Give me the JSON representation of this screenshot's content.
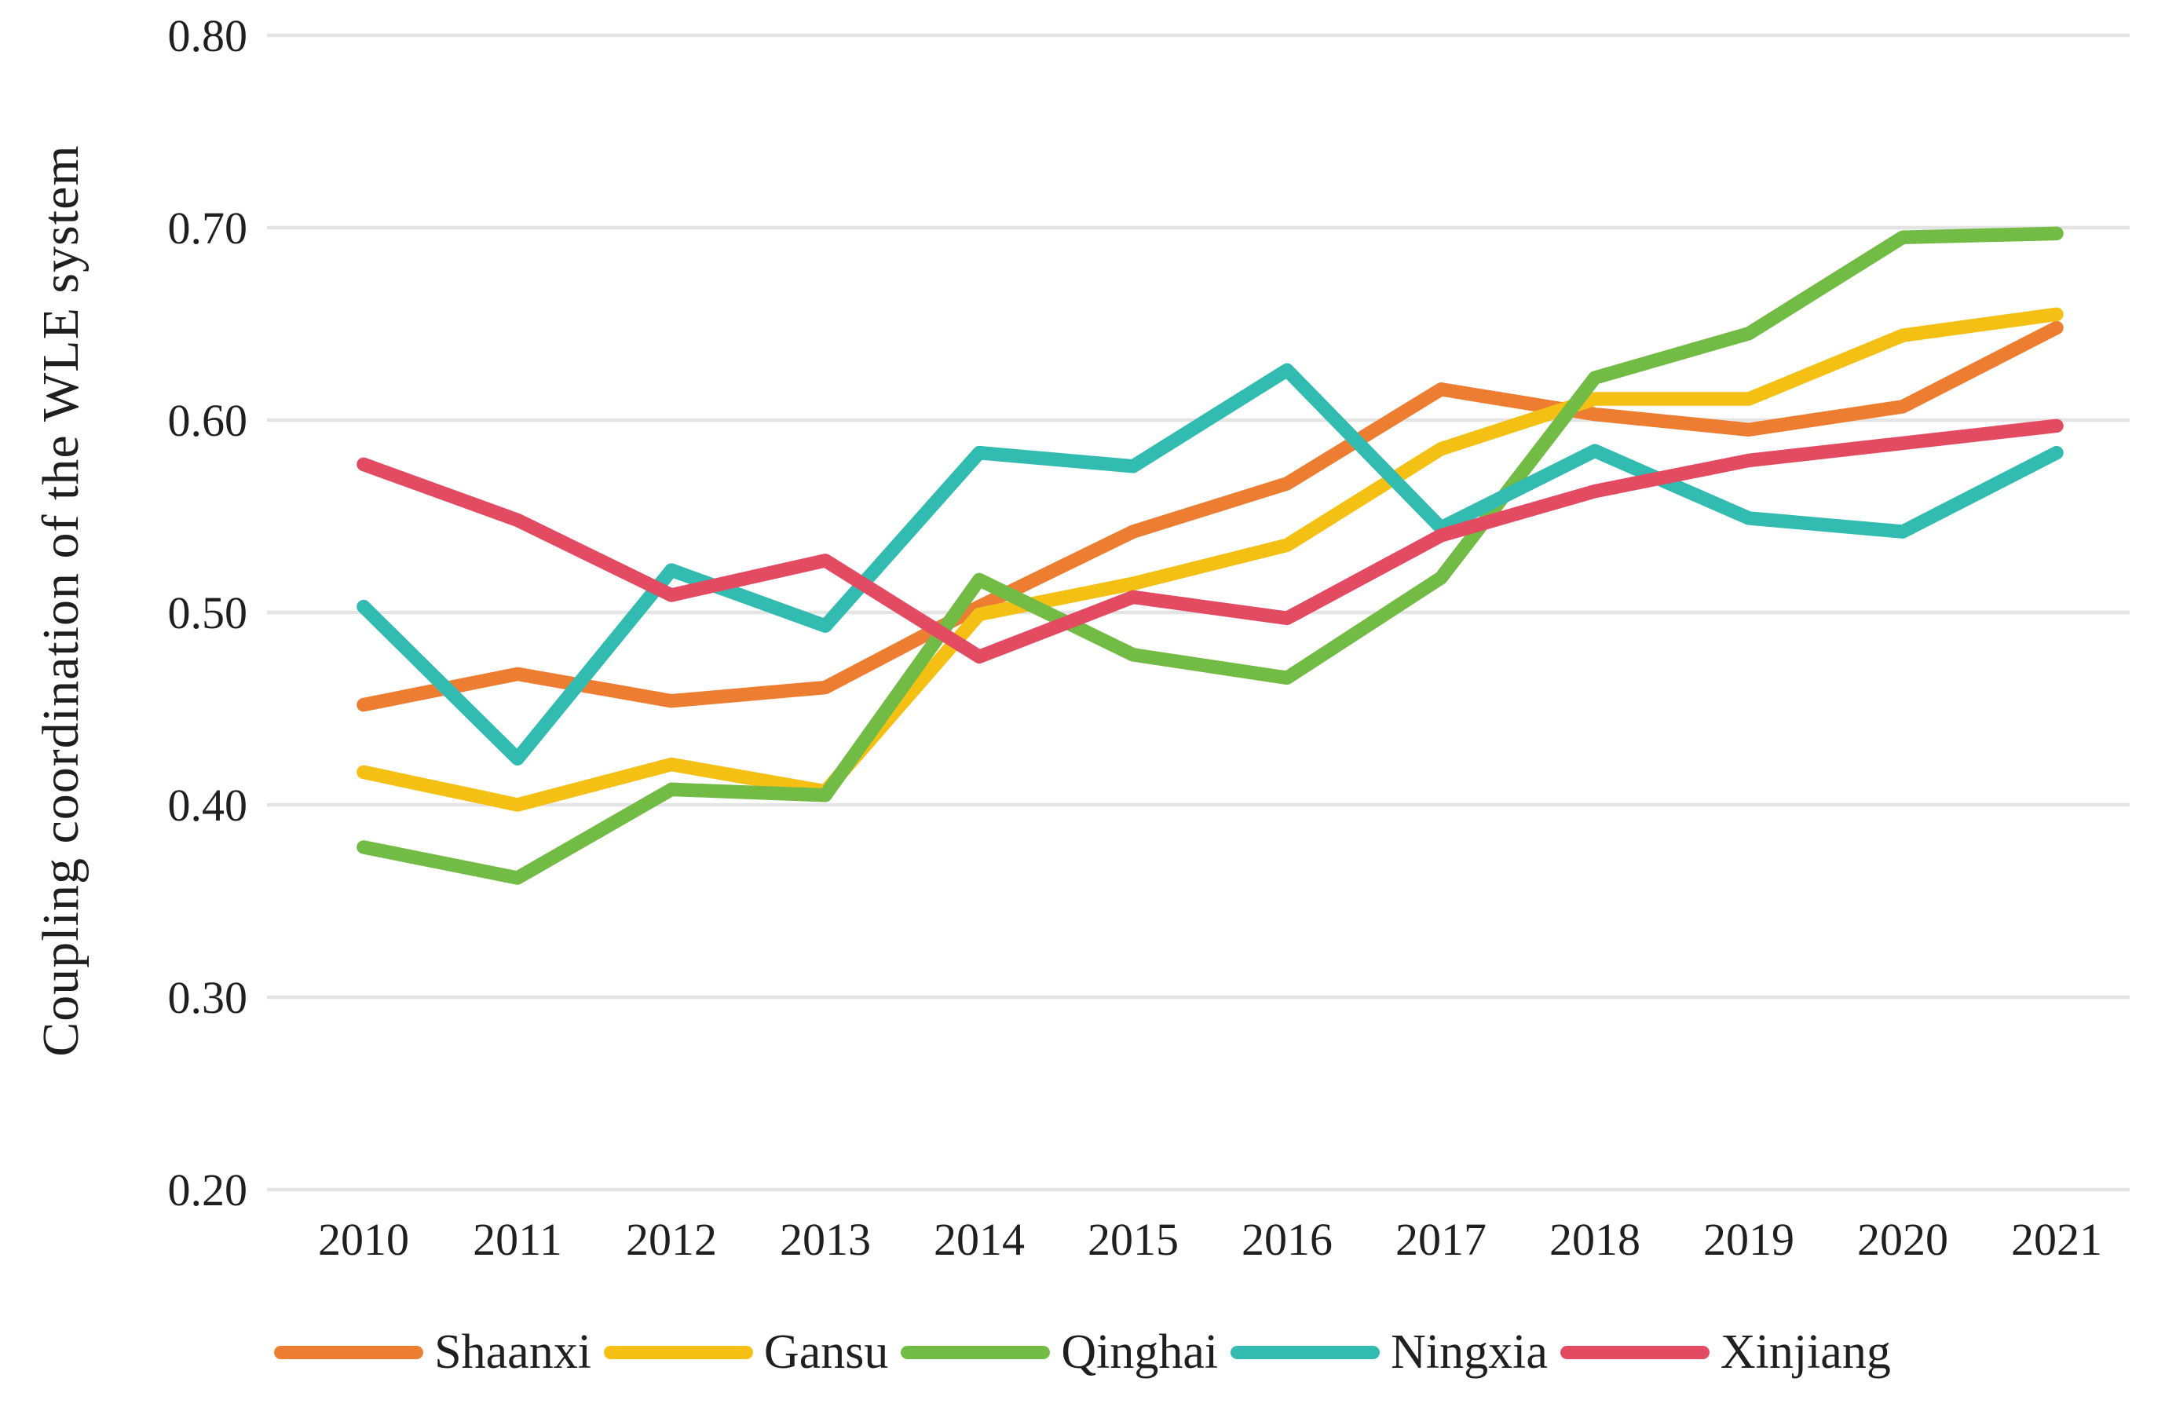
{
  "chart_data": {
    "type": "line",
    "title": "",
    "xlabel": "",
    "ylabel": "Coupling coordination of the WLE system",
    "categories": [
      "2010",
      "2011",
      "2012",
      "2013",
      "2014",
      "2015",
      "2016",
      "2017",
      "2018",
      "2019",
      "2020",
      "2021"
    ],
    "series": [
      {
        "name": "Shaanxi",
        "color": "#ED7D31",
        "values": [
          0.452,
          0.468,
          0.454,
          0.461,
          0.503,
          0.542,
          0.567,
          0.616,
          0.603,
          0.595,
          0.607,
          0.648
        ]
      },
      {
        "name": "Gansu",
        "color": "#F3C013",
        "values": [
          0.417,
          0.4,
          0.421,
          0.407,
          0.499,
          0.515,
          0.535,
          0.585,
          0.611,
          0.611,
          0.644,
          0.655
        ]
      },
      {
        "name": "Qinghai",
        "color": "#72BB44",
        "values": [
          0.378,
          0.362,
          0.408,
          0.405,
          0.517,
          0.478,
          0.466,
          0.518,
          0.622,
          0.645,
          0.695,
          0.697
        ]
      },
      {
        "name": "Ningxia",
        "color": "#32BBB0",
        "values": [
          0.503,
          0.424,
          0.522,
          0.493,
          0.583,
          0.576,
          0.626,
          0.544,
          0.584,
          0.549,
          0.542,
          0.583
        ]
      },
      {
        "name": "Xinjiang",
        "color": "#E24B61",
        "values": [
          0.577,
          0.548,
          0.509,
          0.527,
          0.477,
          0.508,
          0.497,
          0.54,
          0.563,
          0.579,
          0.588,
          0.597
        ]
      }
    ],
    "ylim": [
      0.2,
      0.8
    ],
    "yticks": [
      0.8,
      0.7,
      0.6,
      0.5,
      0.4,
      0.3,
      0.2
    ],
    "ytick_labels": [
      "0.80",
      "0.70",
      "0.60",
      "0.50",
      "0.40",
      "0.30",
      "0.20"
    ],
    "grid": "horizontal",
    "gridline_color": "#E4E4E4",
    "text_color": "#1f1f1f",
    "legend_position": "bottom"
  }
}
